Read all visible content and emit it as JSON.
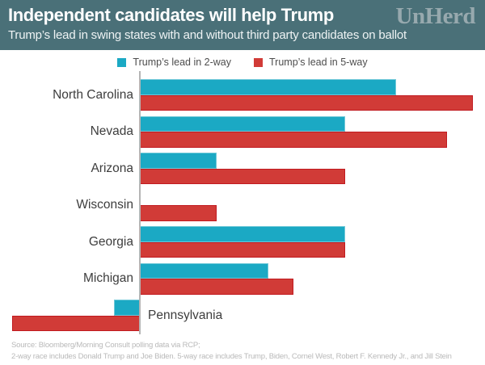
{
  "header": {
    "title": "Independent candidates will help Trump",
    "subtitle": "Trump’s lead in swing states with and without third party candidates on ballot",
    "logo": "UnHerd"
  },
  "colors": {
    "header_bg": "#4a7078",
    "title_text": "#ffffff",
    "subtitle_text": "#eef3f4",
    "logo_text": "#97a9ae",
    "axis": "#b5b5b5",
    "state_label": "#3d3d3d",
    "legend_text": "#4d4d4d",
    "footer_text": "#b9b9b9",
    "plot_background": "#ffffff"
  },
  "chart_data": {
    "type": "bar",
    "orientation": "horizontal",
    "title": "Independent candidates will help Trump",
    "subtitle": "Trump’s lead in swing states with and without third party candidates on ballot",
    "categories": [
      "North Carolina",
      "Nevada",
      "Arizona",
      "Wisconsin",
      "Georgia",
      "Michigan",
      "Pennsylvania"
    ],
    "series": [
      {
        "name": "Trump’s lead in 2-way",
        "color": "#1ba9c4",
        "border_color": "#6fc8d8",
        "values": [
          10,
          8,
          3,
          0,
          8,
          5,
          -1
        ]
      },
      {
        "name": "Trump’s lead in 5-way",
        "color": "#d13b37",
        "border_color": "#c11a20",
        "values": [
          13,
          12,
          8,
          3,
          8,
          6,
          -5
        ]
      }
    ],
    "value_unit": "percentage points",
    "xlim": [
      -5,
      13
    ],
    "grid": false,
    "axis_labels_shown": false,
    "legend_position": "top"
  },
  "footer": {
    "line1": "Source: Bloomberg/Morning Consult polling data via RCP;",
    "line2": "2-way race includes Donald Trump and Joe Biden. 5-way race includes Trump, Biden, Cornel West, Robert F. Kennedy Jr., and Jill Stein"
  }
}
